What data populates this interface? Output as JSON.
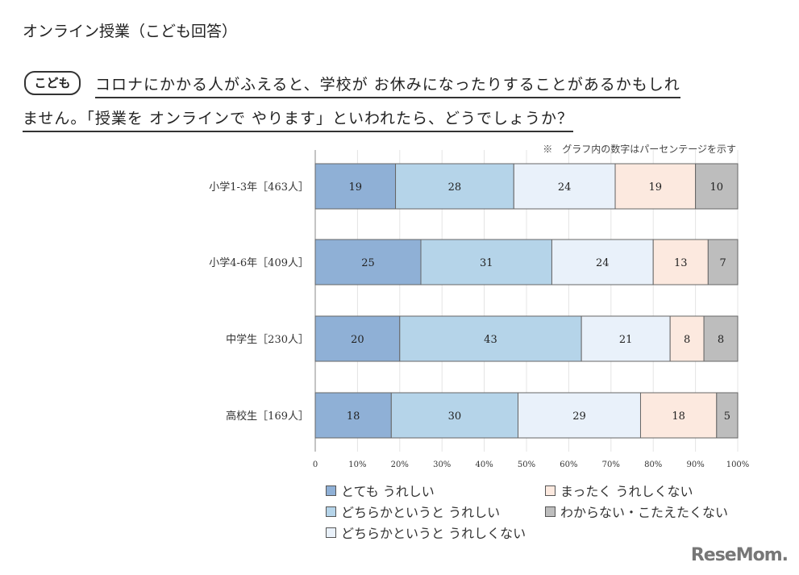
{
  "title": "オンライン授業（こども回答）",
  "question": {
    "badge": "こども",
    "line1": "コロナにかかる人がふえると、学校が お休みになったりすることがあるかもしれ",
    "line2": "ません。「授業を オンラインで やります」といわれたら、どうでしょうか？"
  },
  "logo": "ReseMom",
  "chart_data": {
    "type": "bar",
    "orientation": "horizontal",
    "stacked": true,
    "note": "※　グラフ内の数字はパーセンテージを示す",
    "categories": [
      "小学1-3年［463人］",
      "小学4-6年［409人］",
      "中学生［230人］",
      "高校生［169人］"
    ],
    "series": [
      {
        "name": "とても うれしい",
        "color": "#8fb0d6",
        "values": [
          19,
          25,
          20,
          18
        ]
      },
      {
        "name": "どちらかというと うれしい",
        "color": "#b5d4e9",
        "values": [
          28,
          31,
          43,
          30
        ]
      },
      {
        "name": "どちらかというと うれしくない",
        "color": "#e9f1fa",
        "values": [
          24,
          24,
          21,
          29
        ]
      },
      {
        "name": "まったく うれしくない",
        "color": "#fce9df",
        "values": [
          19,
          13,
          8,
          18
        ]
      },
      {
        "name": "わからない・こたえたくない",
        "color": "#bdbdbd",
        "values": [
          10,
          7,
          8,
          5
        ]
      }
    ],
    "xlim": [
      0,
      100
    ],
    "xticks": [
      "0",
      "10%",
      "20%",
      "30%",
      "40%",
      "50%",
      "60%",
      "70%",
      "80%",
      "90%",
      "100%"
    ],
    "grid": true,
    "legend": "bottom"
  }
}
